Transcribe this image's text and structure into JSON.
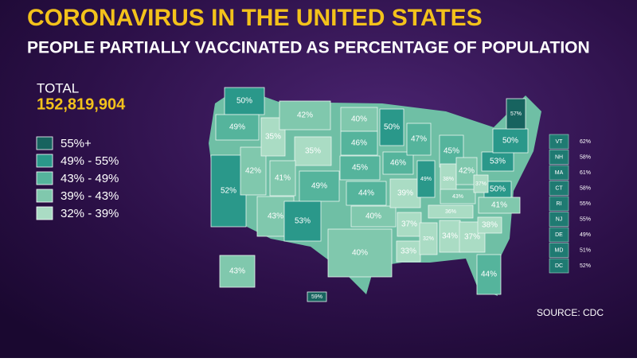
{
  "header": {
    "title": "CORONAVIRUS IN THE UNITED STATES",
    "subtitle": "PEOPLE PARTIALLY VACCINATED AS PERCENTAGE OF POPULATION"
  },
  "total": {
    "label": "TOTAL",
    "value": "152,819,904"
  },
  "legend": [
    {
      "label": "55%+",
      "color": "#17635f"
    },
    {
      "label": "49% - 55%",
      "color": "#2a988a"
    },
    {
      "label": "43% - 49%",
      "color": "#55b49c"
    },
    {
      "label": "39% - 43%",
      "color": "#80c8ad"
    },
    {
      "label": "32% - 39%",
      "color": "#aadcc4"
    }
  ],
  "map": {
    "regions": [
      {
        "label": "50%",
        "color": "#2a988a"
      },
      {
        "label": "49%",
        "color": "#55b49c"
      },
      {
        "label": "52%",
        "color": "#2a988a"
      },
      {
        "label": "42%",
        "color": "#80c8ad"
      },
      {
        "label": "35%",
        "color": "#aadcc4"
      },
      {
        "label": "42%",
        "color": "#80c8ad"
      },
      {
        "label": "35%",
        "color": "#aadcc4"
      },
      {
        "label": "41%",
        "color": "#80c8ad"
      },
      {
        "label": "43%",
        "color": "#80c8ad"
      },
      {
        "label": "49%",
        "color": "#55b49c"
      },
      {
        "label": "53%",
        "color": "#2a988a"
      },
      {
        "label": "40%",
        "color": "#80c8ad"
      },
      {
        "label": "46%",
        "color": "#55b49c"
      },
      {
        "label": "45%",
        "color": "#55b49c"
      },
      {
        "label": "44%",
        "color": "#55b49c"
      },
      {
        "label": "40%",
        "color": "#80c8ad"
      },
      {
        "label": "40%",
        "color": "#80c8ad"
      },
      {
        "label": "50%",
        "color": "#2a988a"
      },
      {
        "label": "46%",
        "color": "#55b49c"
      },
      {
        "label": "39%",
        "color": "#aadcc4"
      },
      {
        "label": "37%",
        "color": "#aadcc4"
      },
      {
        "label": "33%",
        "color": "#aadcc4"
      },
      {
        "label": "47%",
        "color": "#55b49c"
      },
      {
        "label": "49%",
        "color": "#2a988a"
      },
      {
        "label": "45%",
        "color": "#55b49c"
      },
      {
        "label": "38%",
        "color": "#aadcc4"
      },
      {
        "label": "42%",
        "color": "#80c8ad"
      },
      {
        "label": "43%",
        "color": "#80c8ad"
      },
      {
        "label": "36%",
        "color": "#aadcc4"
      },
      {
        "label": "32%",
        "color": "#aadcc4"
      },
      {
        "label": "34%",
        "color": "#aadcc4"
      },
      {
        "label": "37%",
        "color": "#aadcc4"
      },
      {
        "label": "44%",
        "color": "#55b49c"
      },
      {
        "label": "38%",
        "color": "#aadcc4"
      },
      {
        "label": "41%",
        "color": "#80c8ad"
      },
      {
        "label": "50%",
        "color": "#2a988a"
      },
      {
        "label": "37%",
        "color": "#aadcc4"
      },
      {
        "label": "53%",
        "color": "#2a988a"
      },
      {
        "label": "50%",
        "color": "#2a988a"
      },
      {
        "label": "57%",
        "color": "#17635f"
      },
      {
        "label": "43%",
        "color": "#80c8ad"
      },
      {
        "label": "59%",
        "color": "#17635f"
      }
    ]
  },
  "sidebar": {
    "rows": [
      [
        "VT",
        "62%"
      ],
      [
        "NH",
        "58%"
      ],
      [
        "MA",
        "61%"
      ],
      [
        "CT",
        "58%"
      ],
      [
        "RI",
        "55%"
      ],
      [
        "NJ",
        "55%"
      ],
      [
        "DE",
        "49%"
      ],
      [
        "MD",
        "51%"
      ],
      [
        "DC",
        "52%"
      ]
    ]
  },
  "source": "SOURCE: CDC"
}
